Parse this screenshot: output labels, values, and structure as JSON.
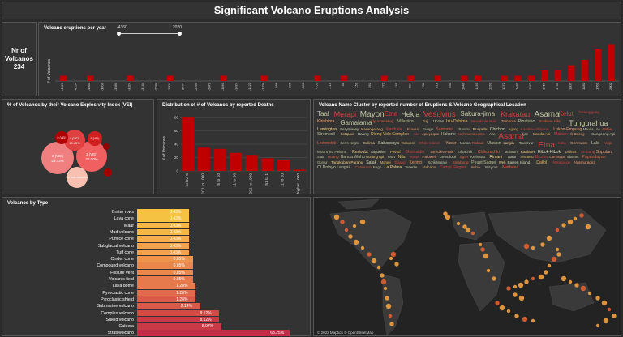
{
  "page": {
    "title": "Significant Volcano Eruptions Analysis"
  },
  "kpi": {
    "label_line1": "Nr of",
    "label_line2": "Volcanos",
    "value": "234"
  },
  "timeline": {
    "title": "Volcano eruptions per year",
    "slider_min": "-4360",
    "slider_max": "2020",
    "ylabel": "# of Volcanos",
    "ticks": [
      "-4326",
      "-4164",
      "-4040",
      "-3800",
      "-3580",
      "-3324",
      "-3144",
      "-2934",
      "-2804",
      "-2574",
      "-2294",
      "-2070",
      "-1860",
      "-1624",
      "-1422",
      "-1204",
      "-986",
      "-806",
      "-580",
      "-355",
      "-115",
      "41",
      "150",
      "262",
      "372",
      "485",
      "594",
      "708",
      "818",
      "930",
      "1040",
      "1150",
      "1262",
      "1372",
      "1482",
      "1562",
      "1650",
      "1730",
      "1807",
      "1882",
      "1961",
      "2002"
    ]
  },
  "vei": {
    "title": "% of Volcanos by their Volcano Explosivity Index (VEI)",
    "bubbles": [
      {
        "label": "3 (VEI)",
        "pct": "30.00%"
      },
      {
        "label": "2 (VEI)",
        "pct": "26.43%"
      },
      {
        "label": "4 (VEI)",
        "pct": "15.45%"
      },
      {
        "label": "6 (VEI)",
        "pct": ""
      },
      {
        "label": "5 (VEI)",
        "pct": ""
      },
      {
        "label": "No data available",
        "pct": ""
      },
      {
        "label": "",
        "pct": ""
      },
      {
        "label": "",
        "pct": ""
      }
    ]
  },
  "deaths": {
    "title": "Distribution of # of Volcanos by reported Deaths",
    "ylabel": "# of Volcanos"
  },
  "cloud": {
    "title": "Volcano Name Cluster by reported number of Eruptions & Volcano Geographical Location",
    "words": [
      "Taal",
      "Merapi",
      "Mayon",
      "Etna",
      "Hekla",
      "Vesuvius",
      "Sakura-jima",
      "Krakatau",
      "Asama",
      "Kelut",
      "Galunggung",
      "Kirishima",
      "Gamalama",
      "Klyuchevskoy",
      "Villarrica",
      "Fuji",
      "Unzen",
      "Izu-Oshima",
      "Nevado del Ruiz",
      "Tambora",
      "Pinatubo",
      "Soufriere Hills",
      "Tungurahua",
      "Lamington",
      "Bezymianny",
      "Karangetang",
      "Karthala",
      "Kilauea",
      "Fuego",
      "Santorini",
      "Bandai",
      "Ruapehu",
      "Chichon",
      "Agung",
      "Kusatsu-Shirane",
      "Lokon-Empung",
      "Mauna Loa",
      "Pelee",
      "Stromboli",
      "Cotopaxi",
      "Raung",
      "Dieng Volc Complex",
      "Aso",
      "Apoyeque",
      "Hakone",
      "Kuchinoerabujima",
      "Awu",
      "Asama",
      "Ijen",
      "Banda Api",
      "Makian",
      "Ili Boleng",
      "Sangeang Api",
      "Lewotolok",
      "Cerro Negro",
      "Colima",
      "Sabancaya",
      "Tarawera",
      "White Island",
      "Yasur",
      "Manam",
      "Rabaul",
      "Ulawun",
      "Langila",
      "Tavurvur",
      "Etna",
      "Katla",
      "Grimsvotn",
      "Laki",
      "Askja",
      "Mount St. Helens",
      "Redoubt",
      "Augustine",
      "Pavlof",
      "Shishaldin",
      "Sarychev Peak",
      "Tolbachik",
      "Chikurachki",
      "Bulusan",
      "Kanlaon",
      "Hibok-Hibok",
      "Didicas",
      "Ambang",
      "Soputan",
      "Siau",
      "Ruang",
      "Banua Wuhu",
      "Gunung Api",
      "Teon",
      "Nila",
      "Serua",
      "Paluweh",
      "Lewotobi",
      "Egon",
      "Kelimutu",
      "Rinjani",
      "Batur",
      "Semeru",
      "Bromo",
      "Lamongan",
      "Slamet",
      "Papandayan",
      "Guntur",
      "Tangkuban Parahu",
      "Salak",
      "Marapi",
      "Talang",
      "Kerinci",
      "Sorik Marapi",
      "Sinabung",
      "Peuet Sague",
      "Weh",
      "Barren Island",
      "Dallol",
      "Nyiragongo",
      "Nyamuragira",
      "Ol Doinyo Lengai",
      "Cameroon",
      "Fogo",
      "La Palma",
      "Tenerife",
      "Vulcano",
      "Campi Flegrei",
      "Ischia",
      "Nisyros",
      "Methana"
    ]
  },
  "types": {
    "title": "Volcanos by Type",
    "items": [
      {
        "label": "Crater rows",
        "value": "0.43%",
        "pct": 0.43
      },
      {
        "label": "Lava cone",
        "value": "0.43%",
        "pct": 0.43
      },
      {
        "label": "Maar",
        "value": "0.43%",
        "pct": 0.43
      },
      {
        "label": "Mud volcano",
        "value": "0.43%",
        "pct": 0.43
      },
      {
        "label": "Pumice cone",
        "value": "0.43%",
        "pct": 0.43
      },
      {
        "label": "Subglacial volcano",
        "value": "0.43%",
        "pct": 0.43
      },
      {
        "label": "Tuff cone",
        "value": "0.43%",
        "pct": 0.43
      },
      {
        "label": "Cinder cone",
        "value": "0.85%",
        "pct": 0.85
      },
      {
        "label": "Compound volcano",
        "value": "0.85%",
        "pct": 0.85
      },
      {
        "label": "Fissure vent",
        "value": "0.85%",
        "pct": 0.85
      },
      {
        "label": "Volcanic field",
        "value": "0.85%",
        "pct": 0.85
      },
      {
        "label": "Lava dome",
        "value": "1.28%",
        "pct": 1.28
      },
      {
        "label": "Pyroclastic cone",
        "value": "1.28%",
        "pct": 1.28
      },
      {
        "label": "Pyroclastic shield",
        "value": "1.28%",
        "pct": 1.28
      },
      {
        "label": "Submarine volcano",
        "value": "2.14%",
        "pct": 2.14
      },
      {
        "label": "Complex volcano",
        "value": "8.12%",
        "pct": 8.12
      },
      {
        "label": "Shield volcano",
        "value": "8.12%",
        "pct": 8.12
      },
      {
        "label": "Caldera",
        "value": "8.97%",
        "pct": 8.97
      },
      {
        "label": "Stratovolcano",
        "value": "63.25%",
        "pct": 63.25
      }
    ]
  },
  "map": {
    "credit": "© 2022 Mapbox © OpenStreetMap"
  },
  "colors": {
    "accent": "#c00000",
    "bg": "#333333",
    "border": "#555555",
    "dark": "#232323"
  },
  "chart_data": [
    {
      "type": "bar",
      "title": "Volcano eruptions per year",
      "ylabel": "# of Volcanos",
      "x": [
        "-4326",
        "-4164",
        "-4040",
        "-3800",
        "-3580",
        "-3324",
        "-3144",
        "-2934",
        "-2804",
        "-2574",
        "-2294",
        "-2070",
        "-1860",
        "-1624",
        "-1422",
        "-1204",
        "-986",
        "-806",
        "-580",
        "-355",
        "-115",
        "41",
        "150",
        "262",
        "372",
        "485",
        "594",
        "708",
        "818",
        "930",
        "1040",
        "1150",
        "1262",
        "1372",
        "1482",
        "1562",
        "1650",
        "1730",
        "1807",
        "1882",
        "1961",
        "2002"
      ],
      "values": [
        1,
        0,
        1,
        0,
        0,
        1,
        0,
        0,
        1,
        0,
        0,
        0,
        1,
        0,
        0,
        1,
        0,
        0,
        0,
        1,
        0,
        1,
        0,
        0,
        1,
        0,
        1,
        0,
        1,
        0,
        1,
        1,
        0,
        1,
        1,
        1,
        2,
        2,
        3,
        4,
        6,
        7
      ],
      "ylim": [
        0,
        8
      ]
    },
    {
      "type": "bar",
      "title": "Distribution of # of Volcanos by reported Deaths",
      "ylabel": "# of Volcanos",
      "categories": [
        "below 5",
        "101 to 1000",
        "5 to 10",
        "11 to 50",
        "201 to 1000",
        "51 to 1",
        "11 to 20",
        "higher 1000"
      ],
      "values": [
        80,
        35,
        33,
        27,
        24,
        19,
        17,
        2
      ],
      "ylim": [
        0,
        85
      ],
      "yticks": [
        0,
        20,
        40,
        60,
        80
      ]
    },
    {
      "type": "bar",
      "title": "Volcanos by Type",
      "categories": [
        "Crater rows",
        "Lava cone",
        "Maar",
        "Mud volcano",
        "Pumice cone",
        "Subglacial volcano",
        "Tuff cone",
        "Cinder cone",
        "Compound volcano",
        "Fissure vent",
        "Volcanic field",
        "Lava dome",
        "Pyroclastic cone",
        "Pyroclastic shield",
        "Submarine volcano",
        "Complex volcano",
        "Shield volcano",
        "Caldera",
        "Stratovolcano"
      ],
      "values": [
        0.43,
        0.43,
        0.43,
        0.43,
        0.43,
        0.43,
        0.43,
        0.85,
        0.85,
        0.85,
        0.85,
        1.28,
        1.28,
        1.28,
        2.14,
        8.12,
        8.12,
        8.97,
        63.25
      ]
    },
    {
      "type": "scatter",
      "title": "% of Volcanos by their Volcano Explosivity Index (VEI)",
      "categories": [
        "3 (VEI)",
        "2 (VEI)",
        "4 (VEI)",
        "6 (VEI)",
        "5 (VEI)",
        "No data available"
      ],
      "values": [
        30.0,
        26.43,
        15.45,
        5,
        8,
        10
      ]
    }
  ]
}
